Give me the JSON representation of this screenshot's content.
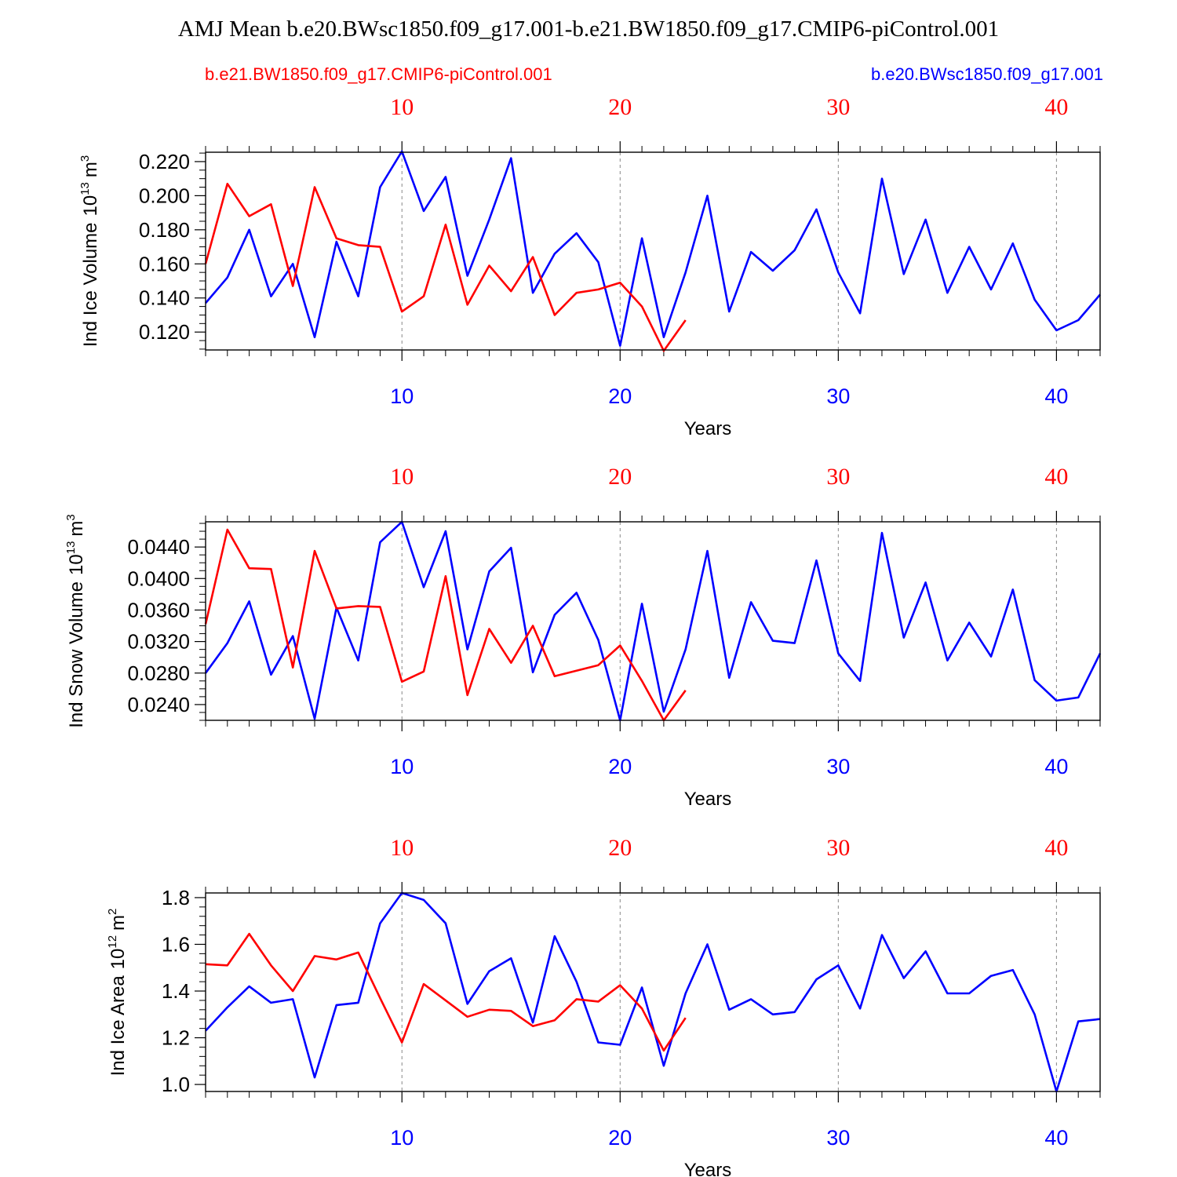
{
  "figure": {
    "title": "AMJ Mean b.e20.BWsc1850.f09_g17.001-b.e21.BW1850.f09_g17.CMIP6-piControl.001",
    "legend_left": "b.e21.BW1850.f09_g17.CMIP6-piControl.001",
    "legend_right": "b.e20.BWsc1850.f09_g17.001",
    "colors": {
      "red": "#ff0000",
      "blue": "#0000ff"
    }
  },
  "chart_data": [
    {
      "type": "line",
      "title": "",
      "xlabel": "Years",
      "ylabel": "Ind Ice Volume",
      "ylabel_unit": "10",
      "ylabel_exp": "13",
      "ylabel_unit2": "m",
      "ylabel_exp2": "3",
      "xlim": [
        1,
        42
      ],
      "ylim": [
        0.1095,
        0.2255
      ],
      "yticks": [
        0.12,
        0.14,
        0.16,
        0.18,
        0.2,
        0.22
      ],
      "ytick_labels": [
        "0.120",
        "0.140",
        "0.160",
        "0.180",
        "0.200",
        "0.220"
      ],
      "yminor": 0.005,
      "xticks": [
        10,
        20,
        30,
        40
      ],
      "xtick_labels_bottom": [
        "10",
        "20",
        "30",
        "40"
      ],
      "xtick_labels_top": [
        "10",
        "20",
        "30",
        "40"
      ],
      "series": [
        {
          "name": "b.e20.BWsc1850.f09_g17.001",
          "color": "#0000ff",
          "x": [
            1,
            2,
            3,
            4,
            5,
            6,
            7,
            8,
            9,
            10,
            11,
            12,
            13,
            14,
            15,
            16,
            17,
            18,
            19,
            20,
            21,
            22,
            23,
            24,
            25,
            26,
            27,
            28,
            29,
            30,
            31,
            32,
            33,
            34,
            35,
            36,
            37,
            38,
            39,
            40,
            41,
            42
          ],
          "values": [
            0.137,
            0.152,
            0.18,
            0.141,
            0.16,
            0.117,
            0.173,
            0.141,
            0.205,
            0.226,
            0.191,
            0.211,
            0.153,
            0.186,
            0.222,
            0.143,
            0.166,
            0.178,
            0.161,
            0.112,
            0.175,
            0.117,
            0.155,
            0.2,
            0.132,
            0.167,
            0.156,
            0.168,
            0.192,
            0.155,
            0.131,
            0.21,
            0.154,
            0.186,
            0.143,
            0.17,
            0.145,
            0.172,
            0.139,
            0.121,
            0.127,
            0.142
          ]
        },
        {
          "name": "b.e21.BW1850.f09_g17.CMIP6-piControl.001",
          "color": "#ff0000",
          "x": [
            1,
            2,
            3,
            4,
            5,
            6,
            7,
            8,
            9,
            10,
            11,
            12,
            13,
            14,
            15,
            16,
            17,
            18,
            19,
            20,
            21,
            22,
            23
          ],
          "values": [
            0.16,
            0.207,
            0.188,
            0.195,
            0.147,
            0.205,
            0.175,
            0.171,
            0.17,
            0.132,
            0.141,
            0.183,
            0.136,
            0.159,
            0.144,
            0.164,
            0.13,
            0.143,
            0.145,
            0.149,
            0.135,
            0.109,
            0.127
          ]
        }
      ]
    },
    {
      "type": "line",
      "title": "",
      "xlabel": "Years",
      "ylabel": "Ind Snow Volume",
      "ylabel_unit": "10",
      "ylabel_exp": "13",
      "ylabel_unit2": "m",
      "ylabel_exp2": "3",
      "xlim": [
        1,
        42
      ],
      "ylim": [
        0.022,
        0.0472
      ],
      "yticks": [
        0.024,
        0.028,
        0.032,
        0.036,
        0.04,
        0.044
      ],
      "ytick_labels": [
        "0.0240",
        "0.0280",
        "0.0320",
        "0.0360",
        "0.0400",
        "0.0440"
      ],
      "yminor": 0.001,
      "xticks": [
        10,
        20,
        30,
        40
      ],
      "xtick_labels_bottom": [
        "10",
        "20",
        "30",
        "40"
      ],
      "xtick_labels_top": [
        "10",
        "20",
        "30",
        "40"
      ],
      "series": [
        {
          "name": "b.e20.BWsc1850.f09_g17.001",
          "color": "#0000ff",
          "x": [
            1,
            2,
            3,
            4,
            5,
            6,
            7,
            8,
            9,
            10,
            11,
            12,
            13,
            14,
            15,
            16,
            17,
            18,
            19,
            20,
            21,
            22,
            23,
            24,
            25,
            26,
            27,
            28,
            29,
            30,
            31,
            32,
            33,
            34,
            35,
            36,
            37,
            38,
            39,
            40,
            41,
            42
          ],
          "values": [
            0.028,
            0.0318,
            0.0371,
            0.0278,
            0.0327,
            0.0222,
            0.0363,
            0.0296,
            0.0446,
            0.0472,
            0.0389,
            0.046,
            0.031,
            0.0409,
            0.0439,
            0.0281,
            0.0354,
            0.0382,
            0.0322,
            0.022,
            0.0368,
            0.0231,
            0.031,
            0.0435,
            0.0274,
            0.037,
            0.0321,
            0.0318,
            0.0423,
            0.0305,
            0.027,
            0.0458,
            0.0325,
            0.0395,
            0.0296,
            0.0344,
            0.0301,
            0.0386,
            0.0271,
            0.0245,
            0.0249,
            0.0305
          ]
        },
        {
          "name": "b.e21.BW1850.f09_g17.CMIP6-piControl.001",
          "color": "#ff0000",
          "x": [
            1,
            2,
            3,
            4,
            5,
            6,
            7,
            8,
            9,
            10,
            11,
            12,
            13,
            14,
            15,
            16,
            17,
            18,
            19,
            20,
            21,
            22,
            23
          ],
          "values": [
            0.0342,
            0.0462,
            0.0413,
            0.0412,
            0.0287,
            0.0435,
            0.0362,
            0.0365,
            0.0364,
            0.0269,
            0.0282,
            0.0403,
            0.0252,
            0.0336,
            0.0293,
            0.034,
            0.0276,
            0.0283,
            0.029,
            0.0315,
            0.027,
            0.022,
            0.0258
          ]
        }
      ]
    },
    {
      "type": "line",
      "title": "",
      "xlabel": "Years",
      "ylabel": "Ind Ice Area",
      "ylabel_unit": "10",
      "ylabel_exp": "12",
      "ylabel_unit2": "m",
      "ylabel_exp2": "2",
      "xlim": [
        1,
        42
      ],
      "ylim": [
        0.97,
        1.82
      ],
      "yticks": [
        1.0,
        1.2,
        1.4,
        1.6,
        1.8
      ],
      "ytick_labels": [
        "1.0",
        "1.2",
        "1.4",
        "1.6",
        "1.8"
      ],
      "yminor": 0.04,
      "xticks": [
        10,
        20,
        30,
        40
      ],
      "xtick_labels_bottom": [
        "10",
        "20",
        "30",
        "40"
      ],
      "xtick_labels_top": [
        "10",
        "20",
        "30",
        "40"
      ],
      "series": [
        {
          "name": "b.e20.BWsc1850.f09_g17.001",
          "color": "#0000ff",
          "x": [
            1,
            2,
            3,
            4,
            5,
            6,
            7,
            8,
            9,
            10,
            11,
            12,
            13,
            14,
            15,
            16,
            17,
            18,
            19,
            20,
            21,
            22,
            23,
            24,
            25,
            26,
            27,
            28,
            29,
            30,
            31,
            32,
            33,
            34,
            35,
            36,
            37,
            38,
            39,
            40,
            41,
            42
          ],
          "values": [
            1.23,
            1.33,
            1.42,
            1.35,
            1.365,
            1.03,
            1.34,
            1.35,
            1.69,
            1.82,
            1.79,
            1.69,
            1.345,
            1.485,
            1.54,
            1.265,
            1.635,
            1.44,
            1.18,
            1.17,
            1.415,
            1.08,
            1.39,
            1.6,
            1.32,
            1.365,
            1.3,
            1.31,
            1.45,
            1.51,
            1.325,
            1.64,
            1.455,
            1.57,
            1.39,
            1.39,
            1.465,
            1.49,
            1.3,
            0.97,
            1.27,
            1.28
          ]
        },
        {
          "name": "b.e21.BW1850.f09_g17.CMIP6-piControl.001",
          "color": "#ff0000",
          "x": [
            1,
            2,
            3,
            4,
            5,
            6,
            7,
            8,
            9,
            10,
            11,
            12,
            13,
            14,
            15,
            16,
            17,
            18,
            19,
            20,
            21,
            22,
            23
          ],
          "values": [
            1.515,
            1.51,
            1.645,
            1.51,
            1.4,
            1.55,
            1.535,
            1.565,
            1.37,
            1.18,
            1.43,
            1.36,
            1.29,
            1.32,
            1.315,
            1.25,
            1.275,
            1.365,
            1.355,
            1.425,
            1.325,
            1.145,
            1.285
          ]
        }
      ]
    }
  ]
}
